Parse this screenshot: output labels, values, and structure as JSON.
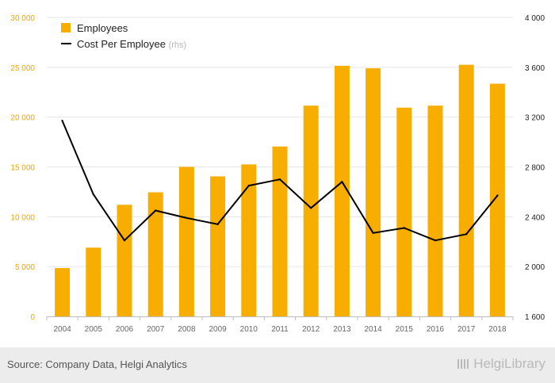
{
  "chart_data": {
    "type": "bar+line",
    "categories": [
      "2004",
      "2005",
      "2006",
      "2007",
      "2008",
      "2009",
      "2010",
      "2011",
      "2012",
      "2013",
      "2014",
      "2015",
      "2016",
      "2017",
      "2018"
    ],
    "series": [
      {
        "name": "Employees",
        "axis": "left",
        "type": "bar",
        "color": "#f7ae00",
        "values": [
          4850,
          6900,
          11200,
          12450,
          15000,
          14050,
          15250,
          17050,
          21150,
          25150,
          24900,
          20950,
          21150,
          25250,
          23350
        ]
      },
      {
        "name": "Cost Per Employee",
        "axis": "right",
        "type": "line",
        "color": "#000000",
        "values": [
          3170,
          2580,
          2210,
          2450,
          2390,
          2340,
          2650,
          2700,
          2470,
          2680,
          2270,
          2310,
          2210,
          2260,
          2570
        ]
      }
    ],
    "legend": [
      {
        "label": "Employees",
        "suffix": ""
      },
      {
        "label": "Cost Per Employee",
        "suffix": "(rhs)"
      }
    ],
    "left_axis": {
      "min": 0,
      "max": 30000,
      "ticks": [
        {
          "v": 0,
          "label": "0"
        },
        {
          "v": 5000,
          "label": "5 000"
        },
        {
          "v": 10000,
          "label": "10 000"
        },
        {
          "v": 15000,
          "label": "15 000"
        },
        {
          "v": 20000,
          "label": "20 000"
        },
        {
          "v": 25000,
          "label": "25 000"
        },
        {
          "v": 30000,
          "label": "30 000"
        }
      ],
      "color": "#f0a500"
    },
    "right_axis": {
      "min": 1600,
      "max": 4000,
      "ticks": [
        {
          "v": 1600,
          "label": "1 600"
        },
        {
          "v": 2000,
          "label": "2 000"
        },
        {
          "v": 2400,
          "label": "2 400"
        },
        {
          "v": 2800,
          "label": "2 800"
        },
        {
          "v": 3200,
          "label": "3 200"
        },
        {
          "v": 3600,
          "label": "3 600"
        },
        {
          "v": 4000,
          "label": "4 000"
        }
      ],
      "color": "#222222"
    },
    "grid": true,
    "legend_position": "top-left"
  },
  "footer": {
    "source": "Source: Company Data, Helgi Analytics",
    "brand": "HelgiLibrary"
  }
}
